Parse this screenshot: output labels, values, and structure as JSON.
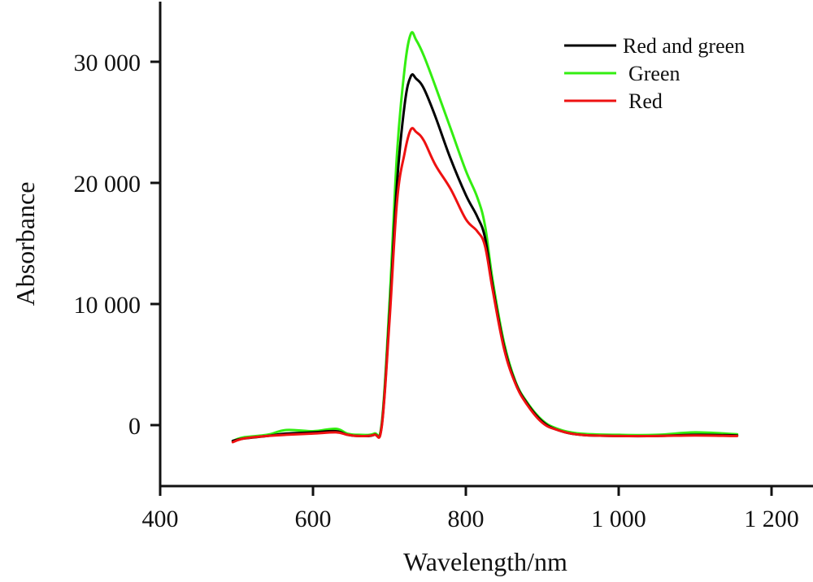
{
  "chart_data": {
    "type": "line",
    "title": "",
    "xlabel": "Wavelength/nm",
    "ylabel": "Absorbance",
    "xlim": [
      400,
      1230
    ],
    "ylim": [
      -5000,
      35000
    ],
    "grid": false,
    "legend_position": "top-right",
    "x_ticks": [
      400,
      600,
      800,
      1000,
      1200
    ],
    "x_tick_labels": [
      "400",
      "600",
      "800",
      "1 000",
      "1 200"
    ],
    "y_ticks": [
      0,
      10000,
      20000,
      30000
    ],
    "y_tick_labels": [
      "0",
      "10 000",
      "20 000",
      "30 000"
    ],
    "x": [
      495,
      510,
      540,
      565,
      600,
      630,
      645,
      660,
      680,
      690,
      700,
      710,
      720,
      728,
      735,
      745,
      760,
      780,
      800,
      815,
      825,
      835,
      850,
      865,
      880,
      900,
      920,
      950,
      1000,
      1050,
      1100,
      1155
    ],
    "series": [
      {
        "name": "Red and green",
        "color": "#000000",
        "values": [
          -1300,
          -1100,
          -900,
          -700,
          -600,
          -500,
          -800,
          -900,
          -800,
          0,
          9000,
          20000,
          26500,
          28800,
          28600,
          27800,
          25500,
          22000,
          19000,
          17200,
          15500,
          11500,
          6500,
          3500,
          1800,
          300,
          -400,
          -800,
          -900,
          -900,
          -800,
          -850
        ]
      },
      {
        "name": "Green",
        "color": "#33ee11",
        "values": [
          -1300,
          -1000,
          -800,
          -400,
          -500,
          -300,
          -700,
          -800,
          -700,
          200,
          10000,
          22500,
          29500,
          32300,
          31800,
          30500,
          28000,
          24500,
          21000,
          18800,
          16500,
          12000,
          6800,
          3600,
          1900,
          400,
          -300,
          -700,
          -800,
          -800,
          -600,
          -750
        ]
      },
      {
        "name": "Red",
        "color": "#ee1111",
        "values": [
          -1400,
          -1100,
          -900,
          -800,
          -700,
          -600,
          -800,
          -900,
          -800,
          -100,
          8500,
          18500,
          22500,
          24400,
          24200,
          23500,
          21500,
          19500,
          17000,
          16000,
          14800,
          11200,
          6300,
          3400,
          1700,
          200,
          -400,
          -800,
          -900,
          -900,
          -850,
          -900
        ]
      }
    ]
  }
}
